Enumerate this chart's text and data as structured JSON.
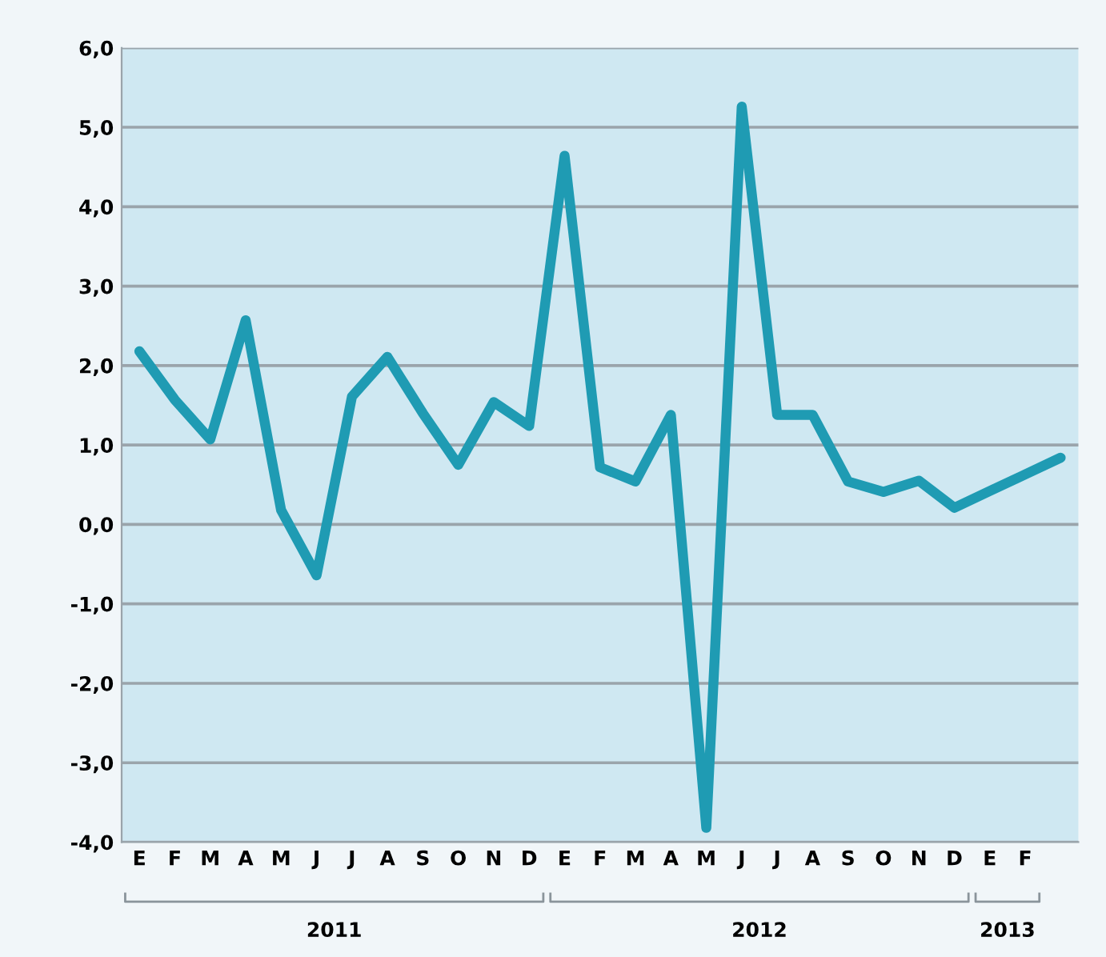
{
  "chart_data": {
    "type": "line",
    "categories": [
      "E",
      "F",
      "M",
      "A",
      "M",
      "J",
      "J",
      "A",
      "S",
      "O",
      "N",
      "D",
      "E",
      "F",
      "M",
      "A",
      "M",
      "J",
      "J",
      "A",
      "S",
      "O",
      "N",
      "D",
      "E",
      "F",
      null
    ],
    "series": [
      {
        "color": "#1f9bb3",
        "values": [
          2.18,
          1.57,
          1.07,
          2.57,
          0.18,
          -0.64,
          1.61,
          2.11,
          1.4,
          0.75,
          1.54,
          1.24,
          4.64,
          0.72,
          0.54,
          1.38,
          -3.82,
          5.26,
          1.38,
          1.38,
          0.54,
          0.41,
          0.55,
          0.21,
          0.42,
          0.63,
          0.84
        ]
      }
    ],
    "ylim": [
      -4,
      6
    ],
    "yticks": [
      {
        "value": -4,
        "label": "-4,0"
      },
      {
        "value": -3,
        "label": "-3,0"
      },
      {
        "value": -2,
        "label": "-2,0"
      },
      {
        "value": -1,
        "label": "-1,0"
      },
      {
        "value": 0,
        "label": "0,0"
      },
      {
        "value": 1,
        "label": "1,0"
      },
      {
        "value": 2,
        "label": "2,0"
      },
      {
        "value": 3,
        "label": "3,0"
      },
      {
        "value": 4,
        "label": "4,0"
      },
      {
        "value": 5,
        "label": "5,0"
      },
      {
        "value": 6,
        "label": "6,0"
      }
    ],
    "annotations": [
      "2011",
      "2012",
      "2013"
    ],
    "grid": "y",
    "legend": false,
    "marker": "none",
    "line_style": "solid"
  }
}
